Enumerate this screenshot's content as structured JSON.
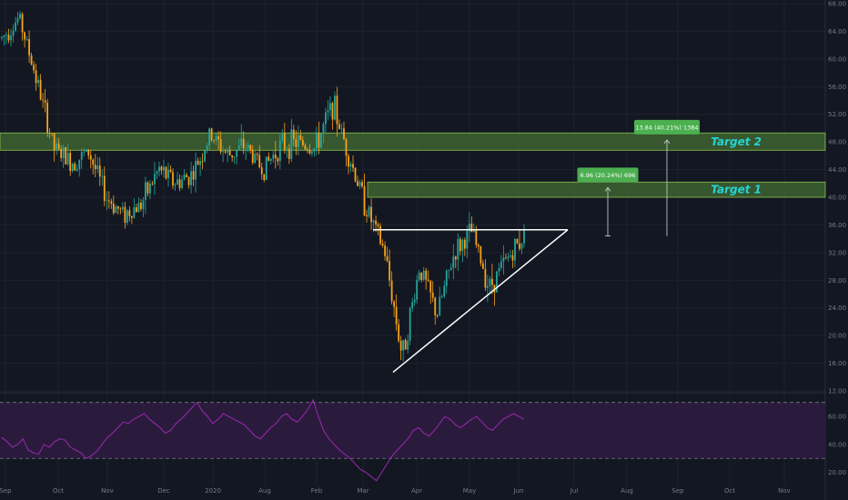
{
  "chart_data": [
    {
      "type": "candlestick",
      "colors": {
        "up": "#26a69a",
        "down": "#f7a21b",
        "zone": "#4c7a37",
        "zone_border": "#8bc34a",
        "tag": "#4caf50",
        "background": "#131722",
        "grid": "#1e222d"
      },
      "y_ticks": [
        "68.00",
        "64.00",
        "60.00",
        "56.00",
        "52.00",
        "48.00",
        "44.00",
        "40.00",
        "36.00",
        "32.00",
        "28.00",
        "24.00",
        "20.00",
        "16.00",
        "12.00"
      ],
      "x_ticks": [
        "Aug",
        "Sep",
        "Oct",
        "Nov",
        "Dec",
        "2020",
        "Feb",
        "Mar",
        "Apr",
        "May",
        "Jun",
        "Jul",
        "Aug",
        "Sep",
        "Oct",
        "Nov"
      ],
      "ylim": [
        12,
        68
      ],
      "grid": true,
      "zones": [
        {
          "label": "Target 1",
          "low": 40.0,
          "high": 42.2
        },
        {
          "label": "Target 2",
          "low": 46.8,
          "high": 49.3
        }
      ],
      "measures": [
        {
          "label": "6.96 (20.24%) 696",
          "from": 34.4,
          "to": 41.4
        },
        {
          "label": "13.84 (40.21%) 1384",
          "from": 34.4,
          "to": 48.3
        }
      ],
      "triangle": {
        "resistance": 35.3,
        "apex_price": 35.3,
        "base_price": 14.7
      },
      "price_path": [
        {
          "x": "Aug",
          "y": 63.0
        },
        {
          "x": "Aug",
          "y": 66.0
        },
        {
          "x": "Aug",
          "y": 57.0
        },
        {
          "x": "Sep",
          "y": 47.0
        },
        {
          "x": "Sep",
          "y": 45.0
        },
        {
          "x": "Sep",
          "y": 46.5
        },
        {
          "x": "Oct",
          "y": 40.0
        },
        {
          "x": "Oct",
          "y": 37.5
        },
        {
          "x": "Oct",
          "y": 39.0
        },
        {
          "x": "Nov",
          "y": 44.0
        },
        {
          "x": "Nov",
          "y": 42.0
        },
        {
          "x": "Nov",
          "y": 43.5
        },
        {
          "x": "Dec",
          "y": 49.0
        },
        {
          "x": "Dec",
          "y": 46.0
        },
        {
          "x": "Dec",
          "y": 47.5
        },
        {
          "x": "2020",
          "y": 44.0
        },
        {
          "x": "2020",
          "y": 47.5
        },
        {
          "x": "2020",
          "y": 48.0
        },
        {
          "x": "Feb",
          "y": 47.0
        },
        {
          "x": "Feb",
          "y": 53.5
        },
        {
          "x": "Feb",
          "y": 45.5
        },
        {
          "x": "Mar",
          "y": 38.0
        },
        {
          "x": "Mar",
          "y": 32.0
        },
        {
          "x": "Mar",
          "y": 17.0
        },
        {
          "x": "Apr",
          "y": 30.0
        },
        {
          "x": "Apr",
          "y": 23.0
        },
        {
          "x": "Apr",
          "y": 32.0
        },
        {
          "x": "May",
          "y": 35.0
        },
        {
          "x": "May",
          "y": 27.0
        },
        {
          "x": "May",
          "y": 31.0
        },
        {
          "x": "Jun",
          "y": 34.5
        }
      ]
    },
    {
      "type": "line",
      "name": "",
      "color": "#9c27b0",
      "band": {
        "low": 30,
        "high": 70,
        "fill": "#2a1b3d",
        "line": "#787b86"
      },
      "y_ticks": [
        "60.00",
        "40.00",
        "20.00"
      ],
      "ylim": [
        10,
        75
      ],
      "values": [
        45,
        42,
        38,
        40,
        44,
        36,
        34,
        33,
        40,
        38,
        42,
        44,
        43,
        38,
        36,
        34,
        30,
        32,
        35,
        40,
        45,
        48,
        52,
        56,
        55,
        58,
        60,
        62,
        58,
        55,
        52,
        48,
        50,
        55,
        58,
        62,
        66,
        70,
        64,
        60,
        55,
        58,
        62,
        60,
        58,
        56,
        54,
        50,
        46,
        44,
        48,
        52,
        55,
        60,
        62,
        58,
        56,
        60,
        65,
        72,
        60,
        50,
        44,
        40,
        36,
        33,
        30,
        26,
        22,
        20,
        17,
        14,
        20,
        26,
        32,
        36,
        40,
        44,
        50,
        52,
        48,
        46,
        50,
        55,
        60,
        58,
        54,
        52,
        55,
        58,
        60,
        56,
        52,
        50,
        54,
        58,
        60,
        62,
        60,
        58
      ]
    }
  ]
}
